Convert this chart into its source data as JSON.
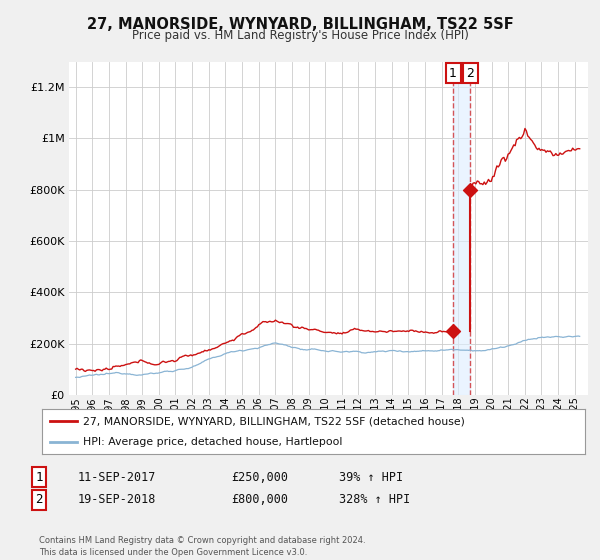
{
  "title": "27, MANORSIDE, WYNYARD, BILLINGHAM, TS22 5SF",
  "subtitle": "Price paid vs. HM Land Registry's House Price Index (HPI)",
  "ylim": [
    0,
    1300000
  ],
  "xlim_start": 1994.6,
  "xlim_end": 2025.8,
  "yticks": [
    0,
    200000,
    400000,
    600000,
    800000,
    1000000,
    1200000
  ],
  "ytick_labels": [
    "£0",
    "£200K",
    "£400K",
    "£600K",
    "£800K",
    "£1M",
    "£1.2M"
  ],
  "background_color": "#f0f0f0",
  "plot_bg_color": "#ffffff",
  "grid_color": "#cccccc",
  "sale1_date": 2017.69,
  "sale1_price": 250000,
  "sale1_label": "1",
  "sale2_date": 2018.72,
  "sale2_price": 800000,
  "sale2_label": "2",
  "hpi_color": "#8ab4d4",
  "price_color": "#cc1111",
  "shaded_color": "#ddeeff",
  "legend_label_price": "27, MANORSIDE, WYNYARD, BILLINGHAM, TS22 5SF (detached house)",
  "legend_label_hpi": "HPI: Average price, detached house, Hartlepool",
  "annotation1_date": "11-SEP-2017",
  "annotation1_price": "£250,000",
  "annotation1_pct": "39% ↑ HPI",
  "annotation2_date": "19-SEP-2018",
  "annotation2_price": "£800,000",
  "annotation2_pct": "328% ↑ HPI",
  "footer": "Contains HM Land Registry data © Crown copyright and database right 2024.\nThis data is licensed under the Open Government Licence v3.0."
}
